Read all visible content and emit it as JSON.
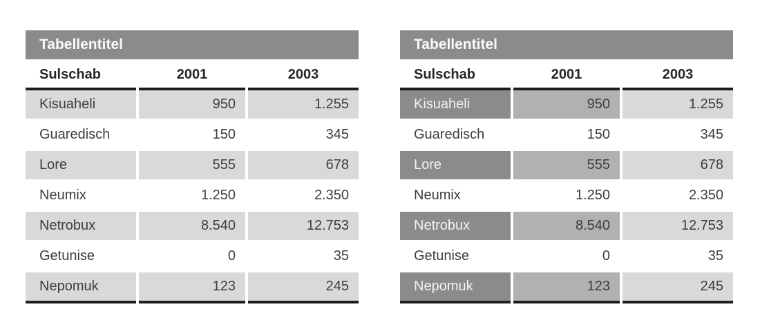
{
  "colors": {
    "title_bar_bg": "#8b8b8b",
    "title_text": "#fafafa",
    "rule_black": "#1d1d1d",
    "shade_light": "#d9d9d9",
    "shade_medium": "#b1b1b1",
    "shade_dark": "#8b8b8b",
    "body_text": "#3d3d3d",
    "header_text": "#262626",
    "background": "#ffffff"
  },
  "tables": [
    {
      "title": "Tabellentitel",
      "style": "uniform-light-zebra",
      "columns": [
        "Sulschab",
        "2001",
        "2003"
      ],
      "rows": [
        {
          "label": "Kisuaheli",
          "values": [
            "950",
            "1.255"
          ]
        },
        {
          "label": "Guaredisch",
          "values": [
            "150",
            "345"
          ]
        },
        {
          "label": "Lore",
          "values": [
            "555",
            "678"
          ]
        },
        {
          "label": "Neumix",
          "values": [
            "1.250",
            "2.350"
          ]
        },
        {
          "label": "Netrobux",
          "values": [
            "8.540",
            "12.753"
          ]
        },
        {
          "label": "Getunise",
          "values": [
            "0",
            "35"
          ]
        },
        {
          "label": "Nepomuk",
          "values": [
            "123",
            "245"
          ]
        }
      ]
    },
    {
      "title": "Tabellentitel",
      "style": "graded-zebra-dark-label",
      "columns": [
        "Sulschab",
        "2001",
        "2003"
      ],
      "rows": [
        {
          "label": "Kisuaheli",
          "values": [
            "950",
            "1.255"
          ]
        },
        {
          "label": "Guaredisch",
          "values": [
            "150",
            "345"
          ]
        },
        {
          "label": "Lore",
          "values": [
            "555",
            "678"
          ]
        },
        {
          "label": "Neumix",
          "values": [
            "1.250",
            "2.350"
          ]
        },
        {
          "label": "Netrobux",
          "values": [
            "8.540",
            "12.753"
          ]
        },
        {
          "label": "Getunise",
          "values": [
            "0",
            "35"
          ]
        },
        {
          "label": "Nepomuk",
          "values": [
            "123",
            "245"
          ]
        }
      ]
    }
  ]
}
